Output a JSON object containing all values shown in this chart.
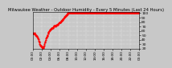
{
  "title": "Milwaukee Weather - Outdoor Humidity - Every 5 Minutes (Last 24 Hours)",
  "bg_color": "#c8c8c8",
  "plot_bg": "#c8c8c8",
  "line_color": "#ff0000",
  "line_style": "--",
  "marker": ".",
  "marker_size": 1.2,
  "line_width": 0.5,
  "ylim": [
    20,
    102
  ],
  "yticks": [
    20,
    30,
    40,
    50,
    60,
    70,
    80,
    90,
    100
  ],
  "humidity_profile": [
    55,
    54,
    53,
    54,
    55,
    54,
    53,
    52,
    51,
    50,
    49,
    48,
    47,
    45,
    43,
    41,
    38,
    35,
    33,
    31,
    29,
    27,
    26,
    25,
    24,
    23,
    22,
    21,
    22,
    23,
    25,
    27,
    30,
    33,
    36,
    39,
    42,
    45,
    47,
    49,
    51,
    53,
    55,
    57,
    59,
    60,
    61,
    62,
    63,
    64,
    65,
    66,
    67,
    66,
    67,
    68,
    69,
    70,
    71,
    72,
    71,
    70,
    71,
    72,
    73,
    74,
    73,
    74,
    75,
    76,
    77,
    78,
    79,
    80,
    79,
    80,
    81,
    82,
    83,
    84,
    85,
    86,
    87,
    88,
    89,
    90,
    91,
    92,
    93,
    94,
    95,
    96,
    97,
    98,
    99,
    100,
    100,
    100,
    100,
    100,
    100,
    100,
    100,
    100,
    100,
    100,
    100,
    100,
    100,
    100,
    100,
    100,
    100,
    100,
    100,
    100,
    100,
    100,
    100,
    100,
    100,
    100,
    100,
    100,
    100,
    100,
    100,
    100,
    100,
    100,
    100,
    100,
    100,
    100,
    100,
    100,
    100,
    100,
    100,
    100,
    100,
    100,
    100,
    100,
    100,
    100,
    100,
    100,
    100,
    100,
    100,
    100,
    100,
    100,
    100,
    100,
    100,
    100,
    100,
    100,
    100,
    100,
    100,
    100,
    100,
    100,
    100,
    100,
    100,
    100,
    100,
    100,
    100,
    100,
    100,
    100,
    100,
    100,
    100,
    100,
    100,
    100,
    100,
    100,
    100,
    100,
    100,
    100,
    100,
    100,
    100,
    100,
    100,
    100,
    100,
    100,
    100,
    100,
    100,
    100,
    100,
    100,
    100,
    100,
    100,
    100,
    100,
    100,
    100,
    100,
    100,
    100,
    100,
    100,
    100,
    100,
    100,
    100,
    100,
    100,
    100,
    100,
    100,
    100,
    100,
    100,
    100,
    100,
    100,
    100,
    100,
    100,
    100,
    100,
    100,
    100,
    100,
    100,
    100,
    100,
    100,
    100,
    100,
    100,
    100,
    100,
    100,
    100,
    100,
    100,
    100,
    100,
    100,
    100,
    100,
    100,
    100,
    100,
    100,
    100,
    100,
    100,
    100,
    100,
    100,
    100,
    100,
    100,
    100,
    100,
    100,
    100,
    100,
    100,
    100,
    100,
    100,
    100,
    100,
    100,
    100,
    100,
    100,
    100,
    100,
    100,
    100,
    100,
    100
  ],
  "title_fontsize": 3.8,
  "tick_fontsize": 3.2,
  "xlabel_fontsize": 3.0,
  "grid_color": "#ffffff",
  "grid_style": ":",
  "grid_lw": 0.35
}
